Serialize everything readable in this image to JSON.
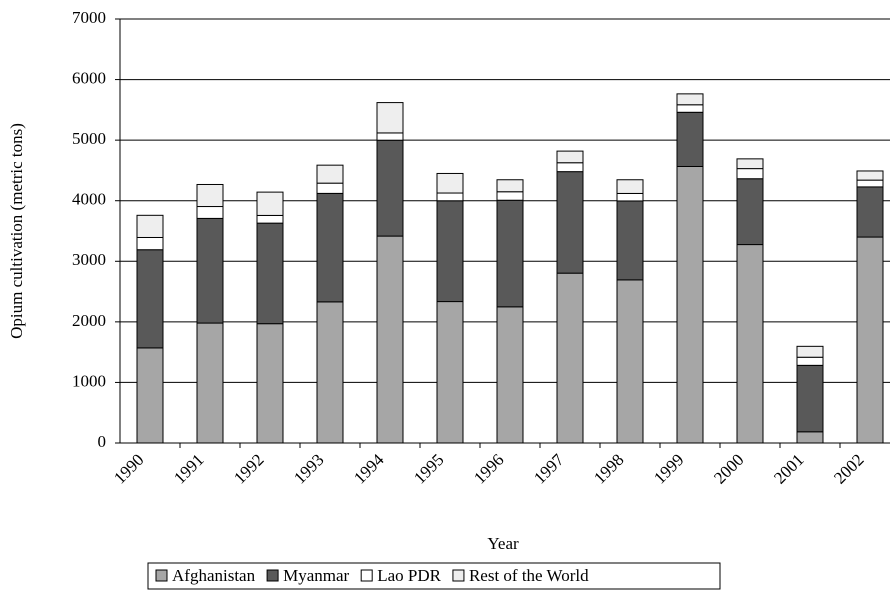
{
  "chart_data": {
    "type": "stacked_bar",
    "x_label": "Year",
    "y_label": "Opium cultivation (metric tons)",
    "categories": [
      "1990",
      "1991",
      "1992",
      "1993",
      "1994",
      "1995",
      "1996",
      "1997",
      "1998",
      "1999",
      "2000",
      "2001",
      "2002"
    ],
    "series": [
      {
        "name": "Afghanistan",
        "color": "#a6a6a6",
        "values": [
          1570,
          1980,
          1970,
          2330,
          3416,
          2335,
          2248,
          2804,
          2693,
          4565,
          3276,
          185,
          3400
        ]
      },
      {
        "name": "Myanmar",
        "color": "#595959",
        "values": [
          1621,
          1728,
          1660,
          1791,
          1583,
          1664,
          1760,
          1676,
          1303,
          895,
          1087,
          1097,
          828
        ]
      },
      {
        "name": "Lao PDR",
        "color": "#ffffff",
        "values": [
          202,
          196,
          127,
          169,
          120,
          128,
          140,
          147,
          124,
          124,
          167,
          134,
          112
        ]
      },
      {
        "name": "Rest of the World",
        "color": "#eeeeee",
        "values": [
          366,
          364,
          385,
          297,
          501,
          323,
          198,
          192,
          226,
          180,
          161,
          180,
          151
        ]
      }
    ],
    "ylim": [
      0,
      7000
    ],
    "yticks": [
      0,
      1000,
      2000,
      3000,
      4000,
      5000,
      6000,
      7000
    ],
    "grid": true,
    "legend": "bottom"
  }
}
